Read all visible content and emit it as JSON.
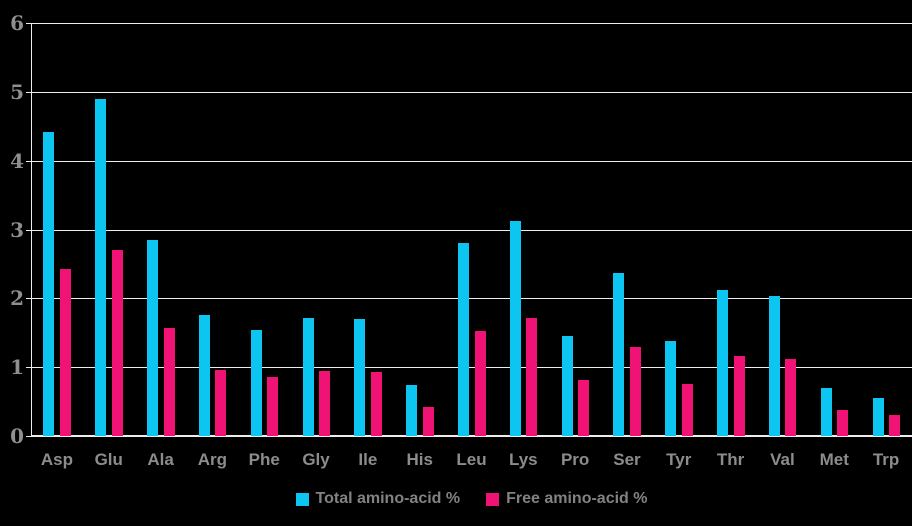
{
  "chart": {
    "background_color": "#000000",
    "grid_color": "#EDEDED",
    "axis_color": "#EDEDED",
    "ytick_label_color": "#8F8F8F",
    "category_label_color": "#8C8C8C",
    "legend_text_color": "#828282"
  },
  "chart_data": {
    "type": "bar",
    "title": "",
    "xlabel": "",
    "ylabel": "",
    "ylim": [
      0,
      6
    ],
    "yticks": [
      0,
      1,
      2,
      3,
      4,
      5,
      6
    ],
    "grid": true,
    "legend_position": "bottom-center",
    "categories": [
      "Asp",
      "Glu",
      "Ala",
      "Arg",
      "Phe",
      "Gly",
      "Ile",
      "His",
      "Leu",
      "Lys",
      "Pro",
      "Ser",
      "Tyr",
      "Thr",
      "Val",
      "Met",
      "Trp"
    ],
    "series": [
      {
        "name": "Total amino-acid %",
        "color": "#0DC5F1",
        "values": [
          4.42,
          4.9,
          2.85,
          1.76,
          1.54,
          1.72,
          1.7,
          0.74,
          2.8,
          3.13,
          1.46,
          2.37,
          1.38,
          2.12,
          2.03,
          0.7,
          0.55
        ]
      },
      {
        "name": "Free amino-acid %",
        "color": "#F01375",
        "values": [
          2.43,
          2.7,
          1.57,
          0.96,
          0.85,
          0.95,
          0.93,
          0.42,
          1.53,
          1.72,
          0.81,
          1.29,
          0.76,
          1.16,
          1.12,
          0.38,
          0.31
        ]
      }
    ]
  }
}
